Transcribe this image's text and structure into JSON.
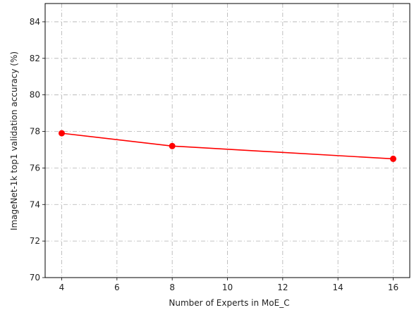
{
  "chart_data": {
    "type": "line",
    "title": "",
    "xlabel": "Number of Experts in MoE_C",
    "ylabel": "ImageNet-1k top1 validation accuracy (%)",
    "xlim": [
      3.4,
      16.6
    ],
    "ylim": [
      70,
      85
    ],
    "x_ticks": [
      4,
      6,
      8,
      10,
      12,
      14,
      16
    ],
    "y_ticks": [
      70,
      72,
      74,
      76,
      78,
      80,
      82,
      84
    ],
    "grid": true,
    "grid_style": "dash-dot",
    "series": [
      {
        "color": "#ff0000",
        "marker": "circle",
        "x": [
          4,
          8,
          16
        ],
        "y": [
          77.9,
          77.2,
          76.5
        ]
      }
    ]
  }
}
